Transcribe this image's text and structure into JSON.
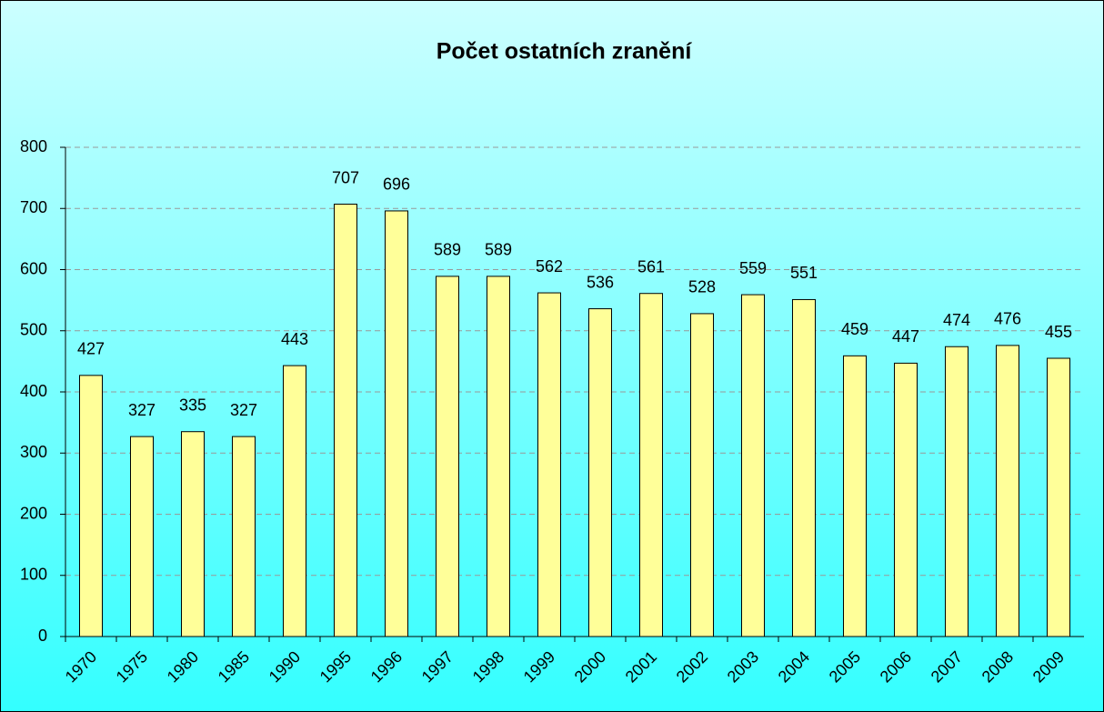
{
  "chart_data": {
    "type": "bar",
    "title": "Počet ostatních zranění",
    "categories": [
      "1970",
      "1975",
      "1980",
      "1985",
      "1990",
      "1995",
      "1996",
      "1997",
      "1998",
      "1999",
      "2000",
      "2001",
      "2002",
      "2003",
      "2004",
      "2005",
      "2006",
      "2007",
      "2008",
      "2009"
    ],
    "values": [
      427,
      327,
      335,
      327,
      443,
      707,
      696,
      589,
      589,
      562,
      536,
      561,
      528,
      559,
      551,
      459,
      447,
      474,
      476,
      455
    ],
    "color": "#ffff99",
    "ylim": [
      0,
      800
    ],
    "yticks": [
      0,
      100,
      200,
      300,
      400,
      500,
      600,
      700,
      800
    ],
    "grid": true
  }
}
